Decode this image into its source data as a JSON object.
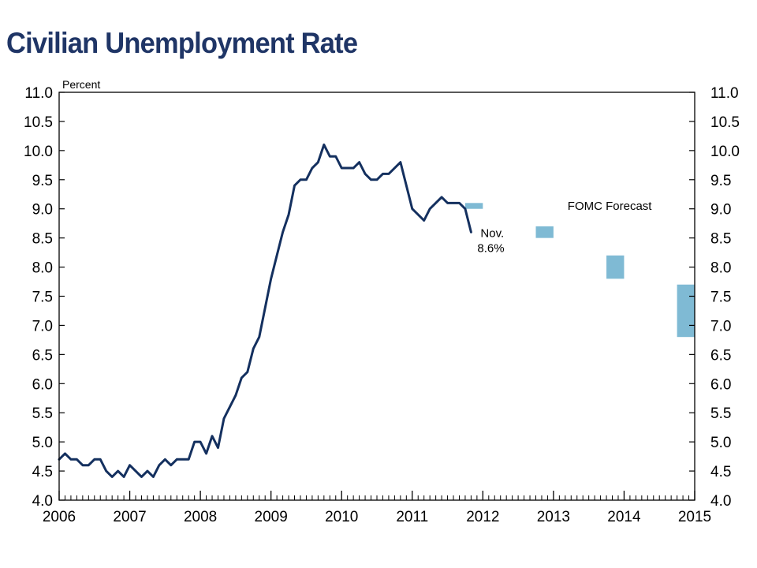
{
  "page": {
    "title": "Civilian Unemployment Rate"
  },
  "chart_data": {
    "type": "line",
    "title": "Civilian Unemployment Rate",
    "ylabel": "Percent",
    "xlabel": "",
    "ylim": [
      4.0,
      11.0
    ],
    "xlim": [
      2006,
      2015
    ],
    "y_ticks": [
      "4.0",
      "4.5",
      "5.0",
      "5.5",
      "6.0",
      "6.5",
      "7.0",
      "7.5",
      "8.0",
      "8.5",
      "9.0",
      "9.5",
      "10.0",
      "10.5",
      "11.0"
    ],
    "x_ticks": [
      "2006",
      "2007",
      "2008",
      "2009",
      "2010",
      "2011",
      "2012",
      "2013",
      "2014",
      "2015"
    ],
    "grid": false,
    "line_color": "#14305f",
    "forecast_color": "#7fbad4",
    "series": [
      {
        "start": "2006-01",
        "frequency": "monthly",
        "values": [
          4.7,
          4.8,
          4.7,
          4.7,
          4.6,
          4.6,
          4.7,
          4.7,
          4.5,
          4.4,
          4.5,
          4.4,
          4.6,
          4.5,
          4.4,
          4.5,
          4.4,
          4.6,
          4.7,
          4.6,
          4.7,
          4.7,
          4.7,
          5.0,
          5.0,
          4.8,
          5.1,
          4.9,
          5.4,
          5.6,
          5.8,
          6.1,
          6.2,
          6.6,
          6.8,
          7.3,
          7.8,
          8.2,
          8.6,
          8.9,
          9.4,
          9.5,
          9.5,
          9.7,
          9.8,
          10.1,
          9.9,
          9.9,
          9.7,
          9.7,
          9.7,
          9.8,
          9.6,
          9.5,
          9.5,
          9.6,
          9.6,
          9.7,
          9.8,
          9.4,
          9.0,
          8.9,
          8.8,
          9.0,
          9.1,
          9.2,
          9.1,
          9.1,
          9.1,
          9.0,
          8.6
        ]
      }
    ],
    "forecast": {
      "label": "FOMC Forecast",
      "ranges": [
        {
          "year": 2011,
          "low": 9.0,
          "high": 9.1
        },
        {
          "year": 2012,
          "low": 8.5,
          "high": 8.7
        },
        {
          "year": 2013,
          "low": 7.8,
          "high": 8.2
        },
        {
          "year": 2014,
          "low": 6.8,
          "high": 7.7
        }
      ]
    },
    "annotations": [
      {
        "text": "Nov.",
        "line": 1
      },
      {
        "text": "8.6%",
        "line": 2
      }
    ]
  }
}
